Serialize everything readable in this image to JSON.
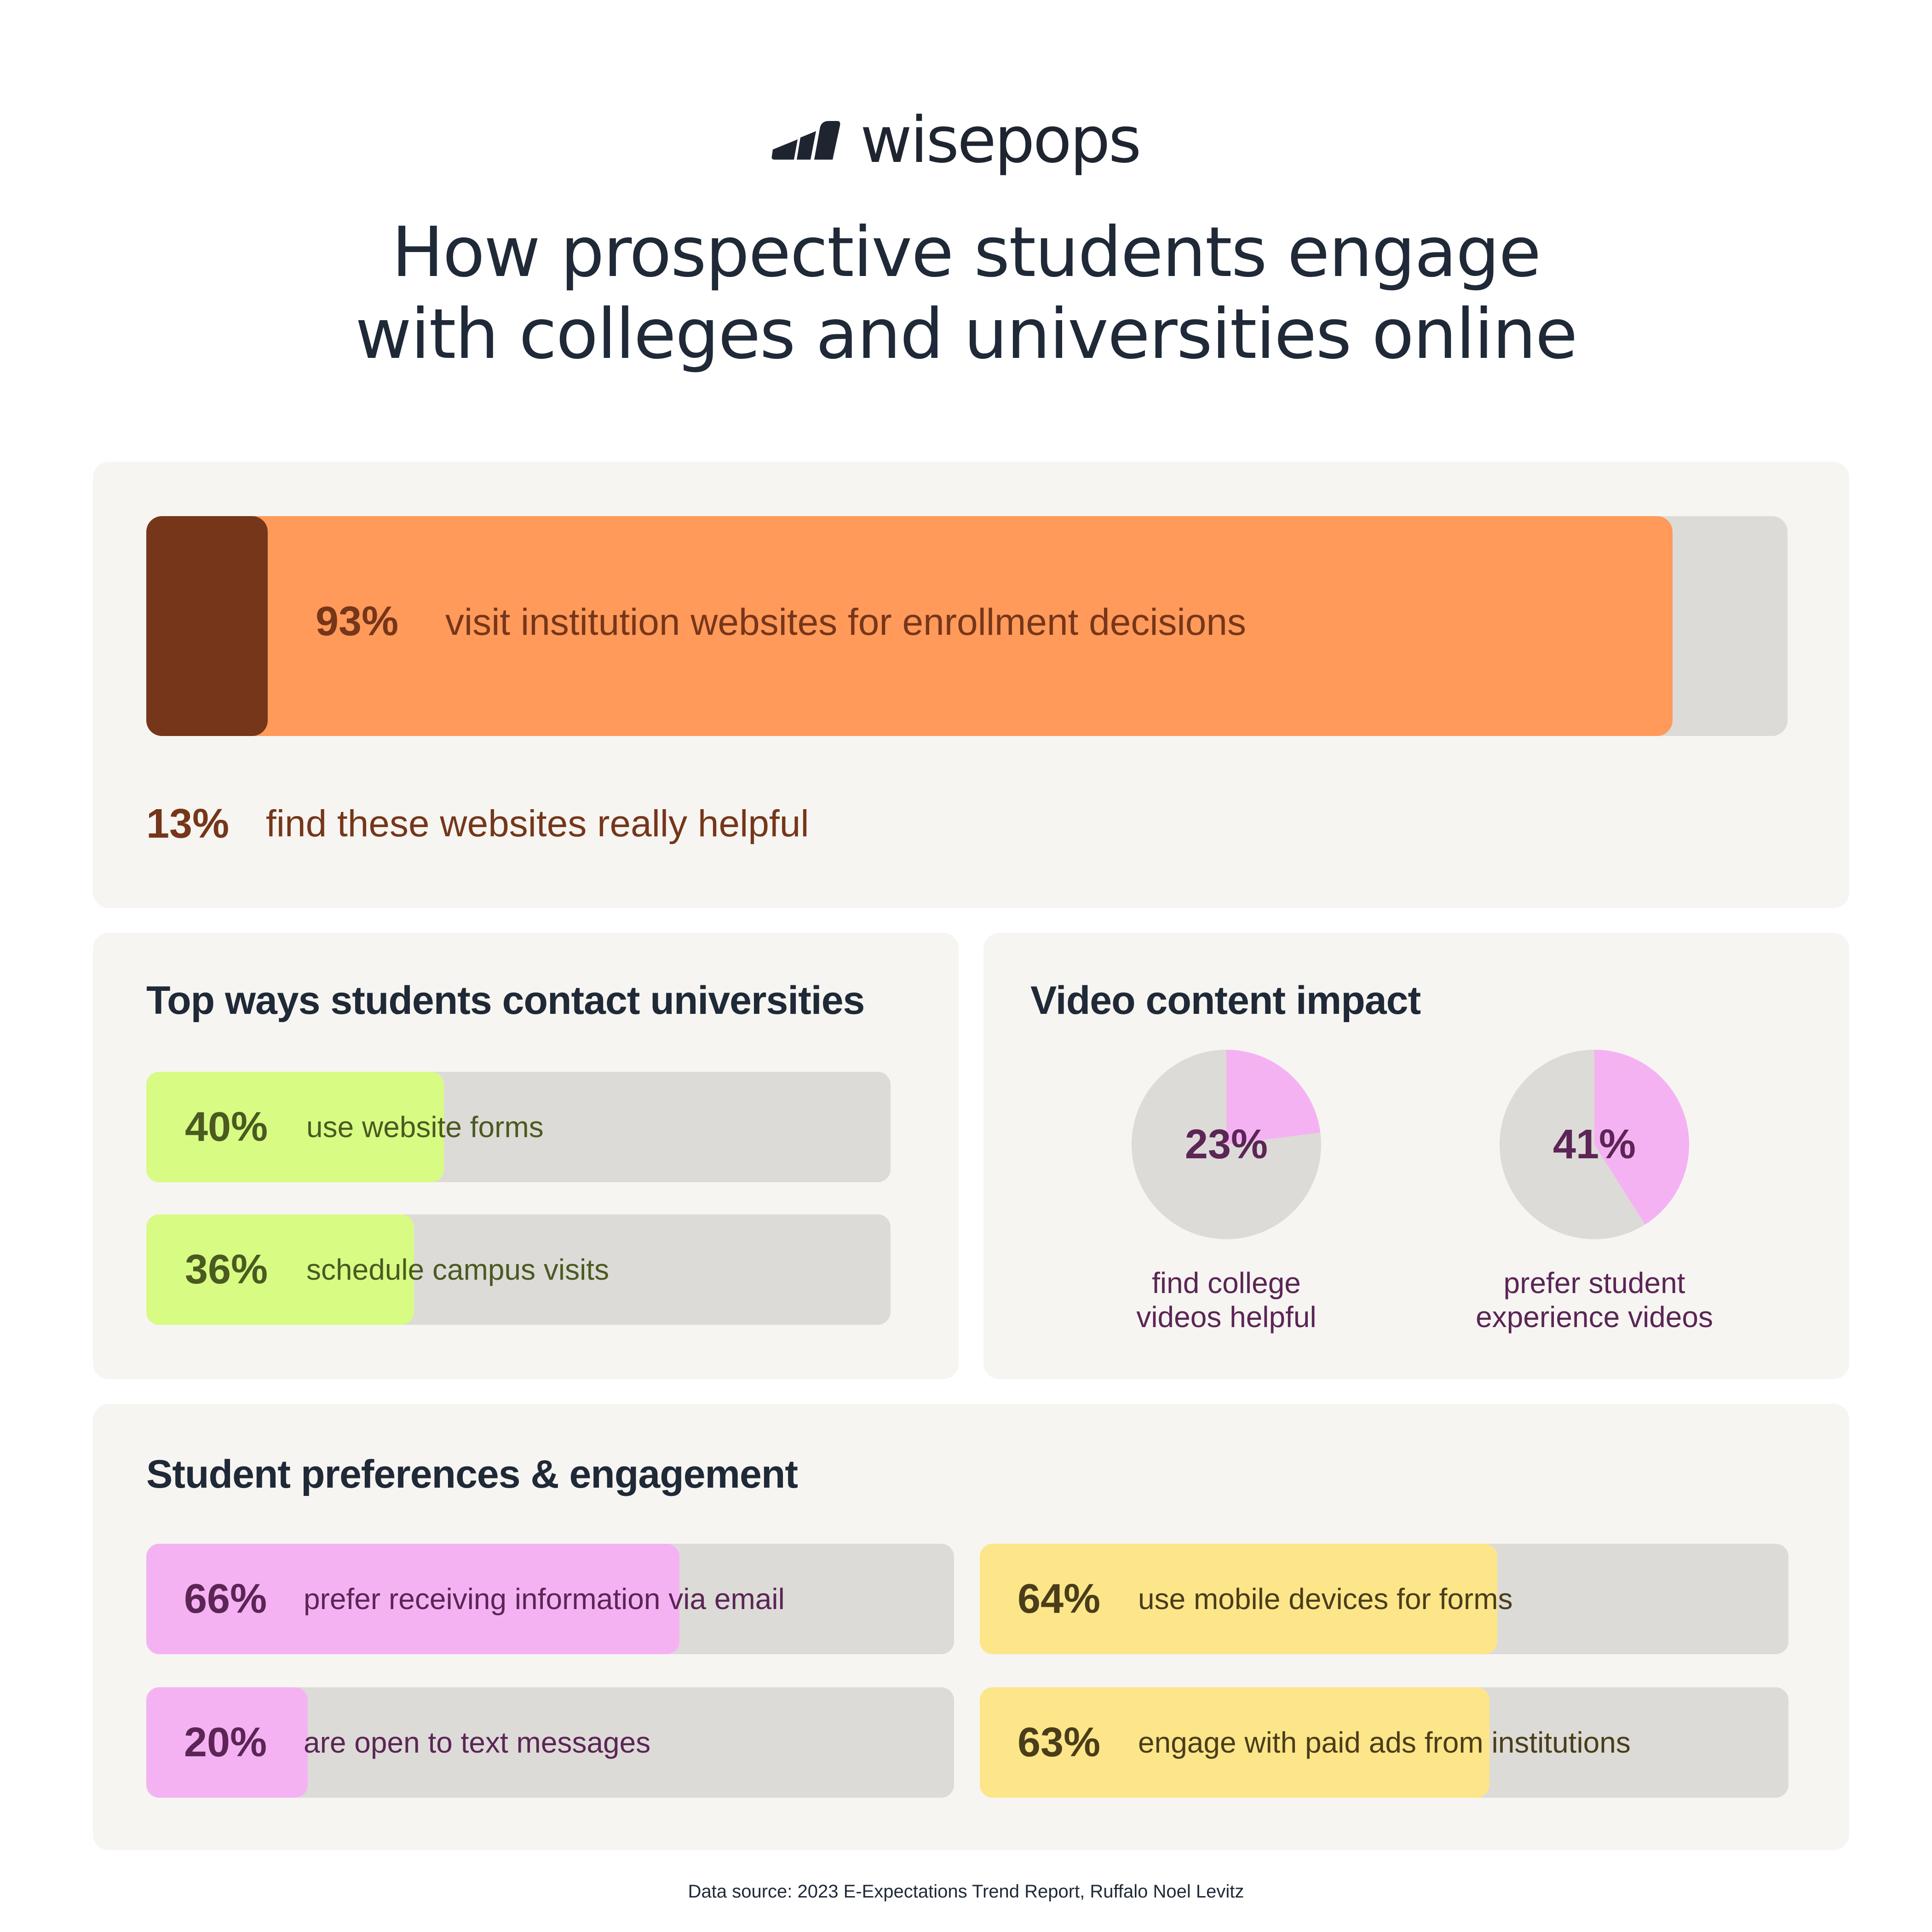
{
  "brand": {
    "name": "wisepops"
  },
  "title": {
    "line1": "How prospective students engage",
    "line2": "with colleges and universities online"
  },
  "colors": {
    "orange": "#ff9a5a",
    "brown": "#76361a",
    "green": "#d8fb84",
    "pink": "#f5b2f3",
    "yellow": "#fde68a",
    "track": "#dddbd7"
  },
  "chart_data": [
    {
      "type": "bar",
      "orientation": "horizontal",
      "categories": [
        "visit institution websites for enrollment decisions",
        "find these websites really helpful"
      ],
      "values": [
        93,
        13
      ],
      "value_labels": [
        "93%",
        "13%"
      ],
      "xlim": [
        0,
        100
      ]
    },
    {
      "type": "bar",
      "orientation": "horizontal",
      "title": "Top ways students contact universities",
      "categories": [
        "use website forms",
        "schedule campus visits"
      ],
      "values": [
        40,
        36
      ],
      "value_labels": [
        "40%",
        "36%"
      ],
      "xlim": [
        0,
        100
      ]
    },
    {
      "type": "pie",
      "title": "Video content impact",
      "series": [
        {
          "name": "find college videos helpful",
          "value": 23,
          "value_label": "23%",
          "label_lines": [
            "find college",
            "videos helpful"
          ]
        },
        {
          "name": "prefer student experience videos",
          "value": 41,
          "value_label": "41%",
          "label_lines": [
            "prefer student",
            "experience videos"
          ]
        }
      ]
    },
    {
      "type": "bar",
      "orientation": "horizontal",
      "title": "Student preferences & engagement",
      "categories": [
        "prefer receiving information via email",
        "are open to text messages",
        "use mobile devices for forms",
        "engage with paid ads from institutions"
      ],
      "values": [
        66,
        20,
        64,
        63
      ],
      "value_labels": [
        "66%",
        "20%",
        "64%",
        "63%"
      ],
      "xlim": [
        0,
        100
      ]
    }
  ],
  "footer": {
    "source": "Data source: 2023 E-Expectations Trend Report, Ruffalo Noel Levitz"
  }
}
